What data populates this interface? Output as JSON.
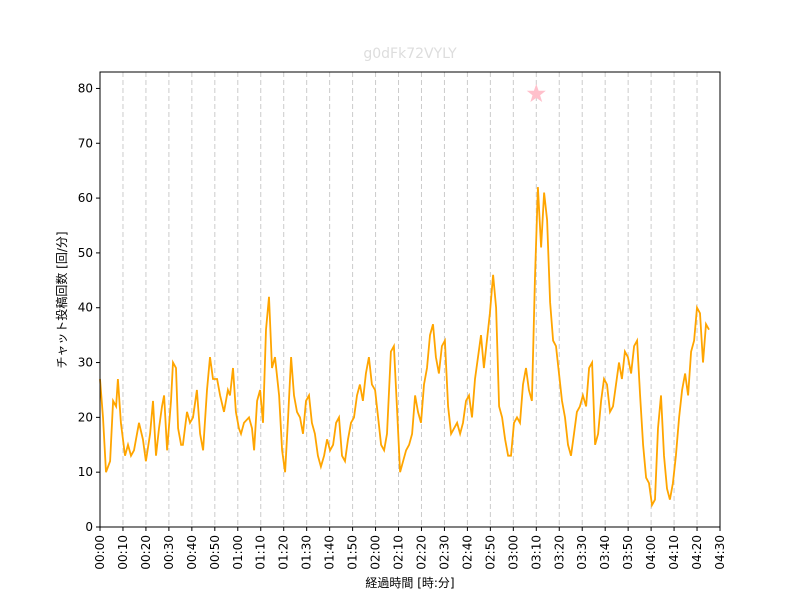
{
  "chart_data": {
    "type": "line",
    "title": "g0dFk72VYLY",
    "xlabel": "経過時間 [時:分]",
    "ylabel": "チャット投稿回数 [回/分]",
    "xlim": [
      0,
      270
    ],
    "ylim": [
      0,
      83
    ],
    "xticks": [
      {
        "value": 0,
        "label": "00:00"
      },
      {
        "value": 10,
        "label": "00:10"
      },
      {
        "value": 20,
        "label": "00:20"
      },
      {
        "value": 30,
        "label": "00:30"
      },
      {
        "value": 40,
        "label": "00:40"
      },
      {
        "value": 50,
        "label": "00:50"
      },
      {
        "value": 60,
        "label": "01:00"
      },
      {
        "value": 70,
        "label": "01:10"
      },
      {
        "value": 80,
        "label": "01:20"
      },
      {
        "value": 90,
        "label": "01:30"
      },
      {
        "value": 100,
        "label": "01:40"
      },
      {
        "value": 110,
        "label": "01:50"
      },
      {
        "value": 120,
        "label": "02:00"
      },
      {
        "value": 130,
        "label": "02:10"
      },
      {
        "value": 140,
        "label": "02:20"
      },
      {
        "value": 150,
        "label": "02:30"
      },
      {
        "value": 160,
        "label": "02:40"
      },
      {
        "value": 170,
        "label": "02:50"
      },
      {
        "value": 180,
        "label": "03:00"
      },
      {
        "value": 190,
        "label": "03:10"
      },
      {
        "value": 200,
        "label": "03:20"
      },
      {
        "value": 210,
        "label": "03:30"
      },
      {
        "value": 220,
        "label": "03:40"
      },
      {
        "value": 230,
        "label": "03:50"
      },
      {
        "value": 240,
        "label": "04:00"
      },
      {
        "value": 250,
        "label": "04:10"
      },
      {
        "value": 260,
        "label": "04:20"
      },
      {
        "value": 270,
        "label": "04:30"
      }
    ],
    "yticks": [
      0,
      10,
      20,
      30,
      40,
      50,
      60,
      70,
      80
    ],
    "xgrid": true,
    "highlight": {
      "x": 190,
      "y": 79,
      "color": "pink"
    },
    "series": [
      {
        "color": "orange",
        "x": [
          0,
          1.3,
          2.6,
          4.4,
          5.7,
          7.0,
          7.8,
          9.1,
          10.9,
          12.2,
          13.5,
          14.8,
          17.0,
          18.7,
          20.0,
          21.8,
          23.1,
          24.4,
          25.7,
          27.0,
          27.9,
          29.2,
          30.9,
          31.8,
          33.1,
          34.0,
          35.3,
          36.1,
          37.9,
          39.2,
          40.5,
          42.2,
          43.6,
          44.9,
          46.6,
          47.9,
          49.2,
          51.0,
          52.3,
          54.0,
          55.7,
          56.6,
          57.9,
          59.2,
          60.5,
          61.4,
          62.7,
          64.9,
          66.2,
          67.1,
          68.4,
          69.7,
          71.0,
          72.3,
          73.6,
          74.9,
          76.2,
          78.0,
          79.3,
          80.6,
          81.9,
          83.2,
          84.5,
          85.8,
          87.1,
          88.4,
          89.7,
          91.0,
          92.3,
          93.6,
          94.9,
          96.2,
          97.6,
          98.9,
          100.2,
          101.5,
          102.8,
          104.1,
          105.4,
          106.7,
          108.0,
          109.3,
          110.6,
          111.9,
          113.2,
          114.5,
          115.8,
          117.1,
          118.4,
          119.8,
          121.1,
          122.4,
          123.7,
          125.0,
          126.7,
          128.0,
          129.3,
          130.7,
          132.0,
          133.3,
          134.6,
          135.9,
          137.2,
          138.5,
          139.8,
          141.1,
          142.4,
          143.7,
          145.0,
          146.3,
          147.6,
          148.9,
          150.2,
          151.6,
          152.9,
          154.2,
          155.5,
          156.8,
          158.1,
          159.4,
          160.7,
          162.0,
          163.3,
          164.6,
          165.9,
          167.2,
          168.5,
          169.8,
          171.2,
          172.5,
          173.8,
          175.1,
          176.4,
          177.7,
          179.0,
          180.3,
          181.6,
          182.9,
          184.2,
          185.5,
          186.8,
          188.1,
          189.4,
          190.7,
          192.1,
          193.4,
          194.7,
          196.0,
          197.3,
          198.6,
          199.9,
          201.2,
          202.5,
          203.8,
          205.1,
          206.4,
          207.7,
          209.0,
          210.3,
          211.7,
          213.0,
          214.3,
          215.6,
          216.9,
          218.2,
          219.5,
          220.8,
          222.1,
          223.4,
          224.7,
          226.0,
          227.3,
          228.6,
          229.9,
          231.3,
          232.6,
          233.9,
          235.2,
          236.5,
          237.8,
          239.1,
          240.4,
          241.7,
          243.0,
          244.3,
          245.6,
          246.9,
          248.2,
          249.5,
          250.8,
          252.2,
          253.5,
          254.8,
          256.1,
          257.4,
          258.7,
          260.0,
          261.3,
          262.6,
          263.9,
          265.2
        ],
        "values": [
          27,
          20,
          10,
          12,
          23,
          22,
          27,
          19,
          13,
          15,
          13,
          14,
          19,
          16,
          12,
          17,
          23,
          13,
          18,
          22,
          24,
          14,
          23,
          30,
          29,
          18,
          15,
          15,
          21,
          19,
          20,
          25,
          17,
          14,
          25,
          31,
          27,
          27,
          24,
          21,
          25,
          24,
          29,
          21,
          18,
          17,
          19,
          20,
          18,
          14,
          23,
          25,
          19,
          36,
          42,
          29,
          31,
          24,
          14,
          10,
          20,
          31,
          24,
          21,
          20,
          17,
          23,
          24,
          19,
          17,
          13,
          11,
          13,
          16,
          14,
          15,
          19,
          20,
          13,
          12,
          16,
          19,
          20,
          24,
          26,
          23,
          28,
          31,
          26,
          25,
          20,
          15,
          14,
          17,
          32,
          33,
          22,
          10,
          12,
          14,
          15,
          17,
          24,
          21,
          19,
          26,
          29,
          35,
          37,
          31,
          28,
          33,
          34,
          22,
          17,
          18,
          19,
          17,
          19,
          23,
          24,
          20,
          27,
          31,
          35,
          29,
          34,
          39,
          46,
          40,
          22,
          20,
          16,
          13,
          13,
          19,
          20,
          19,
          26,
          29,
          25,
          23,
          45,
          62,
          51,
          61,
          56,
          41,
          34,
          33,
          28,
          23,
          20,
          15,
          13,
          17,
          21,
          22,
          24,
          22,
          29,
          30,
          15,
          17,
          23,
          27,
          26,
          21,
          22,
          26,
          30,
          27,
          32,
          31,
          28,
          33,
          34,
          24,
          15,
          9,
          8,
          4,
          5,
          18,
          24,
          13,
          7,
          5,
          8,
          13,
          20,
          25,
          28,
          24,
          32,
          34,
          40,
          39,
          30,
          37,
          36
        ]
      }
    ]
  }
}
